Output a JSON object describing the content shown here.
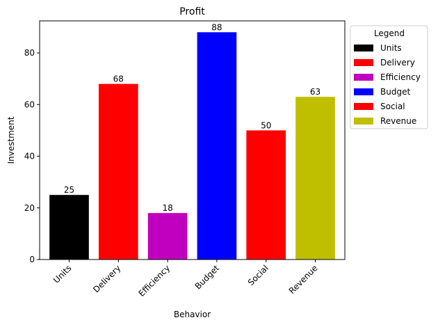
{
  "chart_data": {
    "type": "bar",
    "title": "Profit",
    "xlabel": "Behavior",
    "ylabel": "Investment",
    "categories": [
      "Units",
      "Delivery",
      "Efficiency",
      "Budget",
      "Social",
      "Revenue"
    ],
    "values": [
      25,
      68,
      18,
      88,
      50,
      63
    ],
    "colors": [
      "#000000",
      "#ff0000",
      "#bf00bf",
      "#0000ff",
      "#ff0000",
      "#bfbf00"
    ],
    "ylim": [
      0,
      92.4
    ],
    "yticks": [
      0,
      20,
      40,
      60,
      80
    ],
    "grid": false,
    "legend": {
      "title": "Legend",
      "placement": "outside-right-top",
      "entries": [
        "Units",
        "Delivery",
        "Efficiency",
        "Budget",
        "Social",
        "Revenue"
      ]
    }
  }
}
